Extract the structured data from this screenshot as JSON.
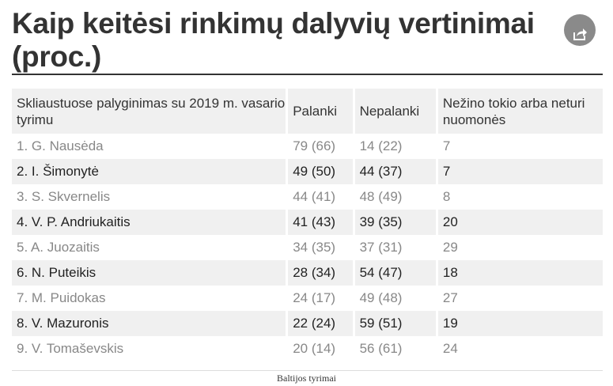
{
  "header": {
    "title": "Kaip keitėsi rinkimų dalyvių vertinimai (proc.)",
    "share_icon": "share-icon"
  },
  "table": {
    "columns": [
      "Skliaustuose palyginimas su 2019 m. vasario tyrimu",
      "Palanki",
      "Nepalanki",
      "Nežino tokio arba neturi nuomonės"
    ],
    "rows": [
      [
        "1. G. Nausėda",
        "79 (66)",
        "14 (22)",
        "7"
      ],
      [
        "2. I. Šimonytė",
        "49 (50)",
        "44 (37)",
        "7"
      ],
      [
        "3. S. Skvernelis",
        "44 (41)",
        "48 (49)",
        "8"
      ],
      [
        "4. V. P. Andriukaitis",
        "41 (43)",
        "39 (35)",
        "20"
      ],
      [
        "5. A. Juozaitis",
        "34 (35)",
        "37 (31)",
        "29"
      ],
      [
        "6. N. Puteikis",
        "28 (34)",
        "54 (47)",
        "18"
      ],
      [
        "7. M. Puidokas",
        "24 (17)",
        "49 (48)",
        "27"
      ],
      [
        "8. V. Mazuronis",
        "22 (24)",
        "59 (51)",
        "19"
      ],
      [
        "9. V. Tomaševskis",
        "20 (14)",
        "56 (61)",
        "24"
      ]
    ]
  },
  "footer": {
    "source": "Baltijos tyrimai"
  },
  "colors": {
    "text": "#333333",
    "header_bg": "#f0f0f0",
    "button_bg": "#8a8a8a"
  }
}
